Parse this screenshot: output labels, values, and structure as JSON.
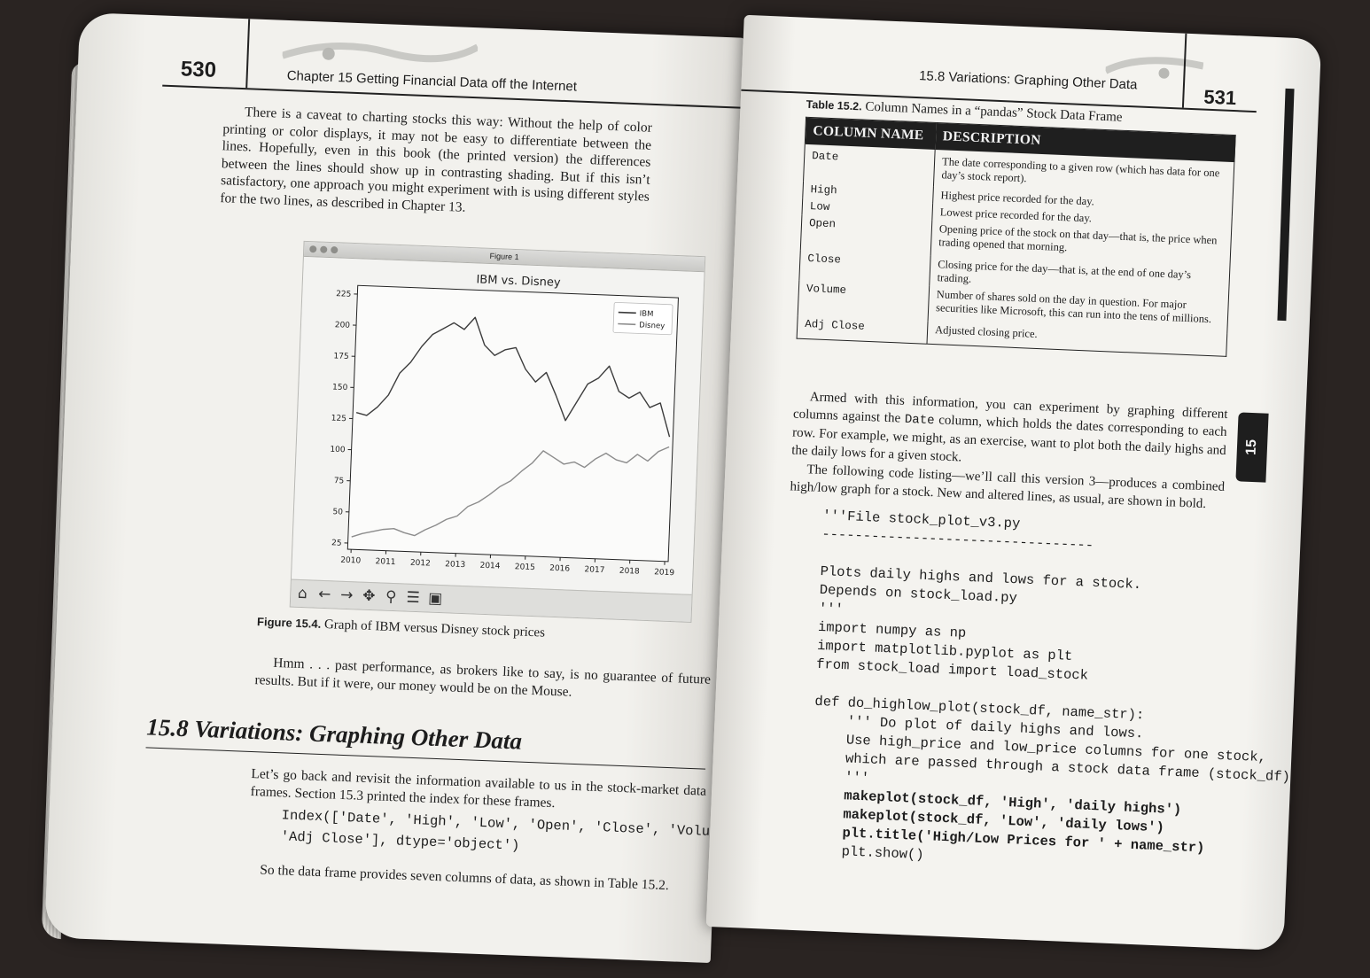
{
  "left_page": {
    "page_number": "530",
    "header_title": "Chapter 15   Getting Financial Data off the Internet",
    "intro_paragraph": "There is a caveat to charting stocks this way: Without the help of color printing or color displays, it may not be easy to differentiate between the lines. Hopefully, even in this book (the printed version) the differences between the lines should show up in contrasting shading. But if this isn’t satisfactory, one approach you might experiment with is using different styles for the two lines, as described in Chapter 13.",
    "figure_window_title": "Figure 1",
    "figure_label": "Figure 15.4.",
    "figure_caption": "Graph of IBM versus Disney stock prices",
    "after_figure_paragraph": "Hmm . . . past performance, as brokers like to say, is no guarantee of future results. But if it were, our money would be on the Mouse.",
    "section_title": "15.8 Variations: Graphing Other Data",
    "section_paragraph": "Let’s go back and revisit the information available to us in the stock-market data frames. Section 15.3 printed the index for these frames.",
    "code": [
      "Index(['Date', 'High', 'Low', 'Open', 'Close', 'Volume',",
      "'Adj Close'], dtype='object')"
    ],
    "closing_paragraph": "So the data frame provides seven columns of data, as shown in Table 15.2."
  },
  "right_page": {
    "page_number": "531",
    "header_title": "15.8 Variations: Graphing Other Data",
    "table_label": "Table 15.2.",
    "table_caption": "Column Names in a “pandas” Stock Data Frame",
    "table_headers": [
      "COLUMN NAME",
      "DESCRIPTION"
    ],
    "table_rows": [
      [
        "Date",
        "The date corresponding to a given row (which has data for one day’s stock report)."
      ],
      [
        "High",
        "Highest price recorded for the day."
      ],
      [
        "Low",
        "Lowest price recorded for the day."
      ],
      [
        "Open",
        "Opening price of the stock on that day—that is, the price when trading opened that morning."
      ],
      [
        "Close",
        "Closing price for the day—that is, at the end of one day’s trading."
      ],
      [
        "Volume",
        "Number of shares sold on the day in question. For major securities like Microsoft, this can run into the tens of millions."
      ],
      [
        "Adj Close",
        "Adjusted closing price."
      ]
    ],
    "paragraph_1a": "Armed with this information, you can experiment by graphing different columns against the ",
    "paragraph_1_code": "Date",
    "paragraph_1b": " column, which holds the dates corresponding to each row. For example, we might, as an exercise, want to plot both the daily highs and the daily lows for a given stock.",
    "paragraph_2": "The following code listing—we’ll call this version 3—produces a combined high/low graph for a stock. New and altered lines, as usual, are shown in bold.",
    "code": [
      {
        "text": "'''File stock_plot_v3.py",
        "bold": false
      },
      {
        "text": "---------------------------------",
        "bold": false
      },
      {
        "text": "",
        "bold": false
      },
      {
        "text": "Plots daily highs and lows for a stock.",
        "bold": false
      },
      {
        "text": "Depends on stock_load.py",
        "bold": false
      },
      {
        "text": "'''",
        "bold": false
      },
      {
        "text": "import numpy as np",
        "bold": false
      },
      {
        "text": "import matplotlib.pyplot as plt",
        "bold": false
      },
      {
        "text": "from stock_load import load_stock",
        "bold": false
      },
      {
        "text": "",
        "bold": false
      },
      {
        "text": "def do_highlow_plot(stock_df, name_str):",
        "bold": false
      },
      {
        "text": "    ''' Do plot of daily highs and lows.",
        "bold": false
      },
      {
        "text": "    Use high_price and low_price columns for one stock,",
        "bold": false
      },
      {
        "text": "    which are passed through a stock data frame (stock_df).",
        "bold": false
      },
      {
        "text": "    '''",
        "bold": false
      },
      {
        "text": "    makeplot(stock_df, 'High', 'daily highs')",
        "bold": true
      },
      {
        "text": "    makeplot(stock_df, 'Low', 'daily lows')",
        "bold": true
      },
      {
        "text": "    plt.title('High/Low Prices for ' + name_str)",
        "bold": true
      },
      {
        "text": "    plt.show()",
        "bold": false
      }
    ],
    "chapter_tab": "15"
  },
  "chart_data": {
    "type": "line",
    "title": "IBM vs. Disney",
    "xlabel": "",
    "ylabel": "",
    "x_ticks": [
      "2010",
      "2011",
      "2012",
      "2013",
      "2014",
      "2015",
      "2016",
      "2017",
      "2018",
      "2019"
    ],
    "y_ticks": [
      25,
      50,
      75,
      100,
      125,
      150,
      175,
      200,
      225
    ],
    "xlim": [
      2009.9,
      2019.1
    ],
    "ylim": [
      20,
      232
    ],
    "legend_position": "top-right",
    "grid": false,
    "series": [
      {
        "name": "IBM",
        "color": "#3c3c3c",
        "x": [
          2010.0,
          2010.3,
          2010.6,
          2010.9,
          2011.2,
          2011.5,
          2011.8,
          2012.1,
          2012.4,
          2012.7,
          2013.0,
          2013.3,
          2013.6,
          2013.9,
          2014.2,
          2014.5,
          2014.8,
          2015.1,
          2015.4,
          2015.7,
          2016.0,
          2016.3,
          2016.6,
          2016.9,
          2017.2,
          2017.5,
          2017.8,
          2018.1,
          2018.4,
          2018.7,
          2019.0
        ],
        "values": [
          130,
          128,
          135,
          145,
          163,
          172,
          185,
          195,
          200,
          205,
          200,
          210,
          188,
          180,
          185,
          187,
          170,
          160,
          168,
          150,
          130,
          145,
          160,
          165,
          175,
          155,
          150,
          155,
          143,
          147,
          120
        ]
      },
      {
        "name": "Disney",
        "color": "#8c8c8c",
        "x": [
          2010.0,
          2010.3,
          2010.6,
          2010.9,
          2011.2,
          2011.5,
          2011.8,
          2012.1,
          2012.4,
          2012.7,
          2013.0,
          2013.3,
          2013.6,
          2013.9,
          2014.2,
          2014.5,
          2014.8,
          2015.1,
          2015.4,
          2015.7,
          2016.0,
          2016.3,
          2016.6,
          2016.9,
          2017.2,
          2017.5,
          2017.8,
          2018.1,
          2018.4,
          2018.7,
          2019.0
        ],
        "values": [
          30,
          33,
          35,
          37,
          38,
          35,
          33,
          38,
          42,
          47,
          50,
          58,
          62,
          68,
          75,
          80,
          88,
          95,
          105,
          100,
          95,
          97,
          93,
          100,
          105,
          100,
          98,
          105,
          100,
          108,
          112
        ]
      }
    ]
  }
}
